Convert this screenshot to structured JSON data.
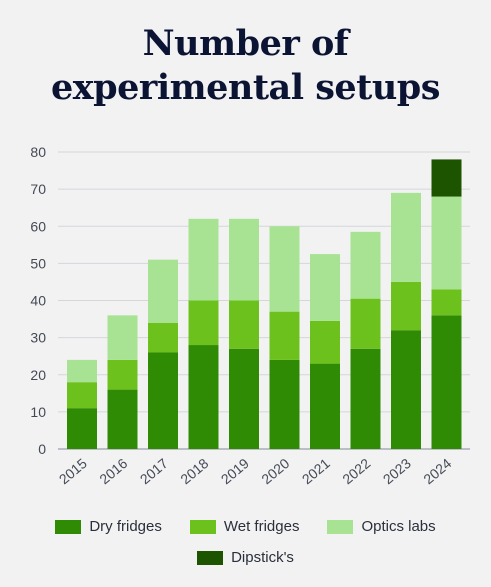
{
  "title_lines": [
    "Number of",
    "experimental setups"
  ],
  "chart_data": {
    "type": "bar",
    "stacked": true,
    "categories": [
      "2015",
      "2016",
      "2017",
      "2018",
      "2019",
      "2020",
      "2021",
      "2022",
      "2023",
      "2024"
    ],
    "series": [
      {
        "name": "Dry fridges",
        "color": "#2f8a04",
        "values": [
          11,
          16,
          26,
          28,
          27,
          24,
          23,
          27,
          32,
          36
        ]
      },
      {
        "name": "Wet fridges",
        "color": "#6cc11c",
        "values": [
          7,
          8,
          8,
          12,
          13,
          13,
          11.5,
          13.5,
          13,
          7
        ]
      },
      {
        "name": "Optics labs",
        "color": "#a8e393",
        "values": [
          6,
          12,
          17,
          22,
          22,
          23,
          18,
          18,
          24,
          25
        ]
      },
      {
        "name": "Dipstick's",
        "color": "#1d5400",
        "values": [
          0,
          0,
          0,
          0,
          0,
          0,
          0,
          0,
          0,
          10
        ]
      }
    ],
    "yticks": [
      0,
      10,
      20,
      30,
      40,
      50,
      60,
      70,
      80
    ],
    "ylim": [
      0,
      80
    ],
    "grid": true,
    "legend_position": "bottom"
  }
}
